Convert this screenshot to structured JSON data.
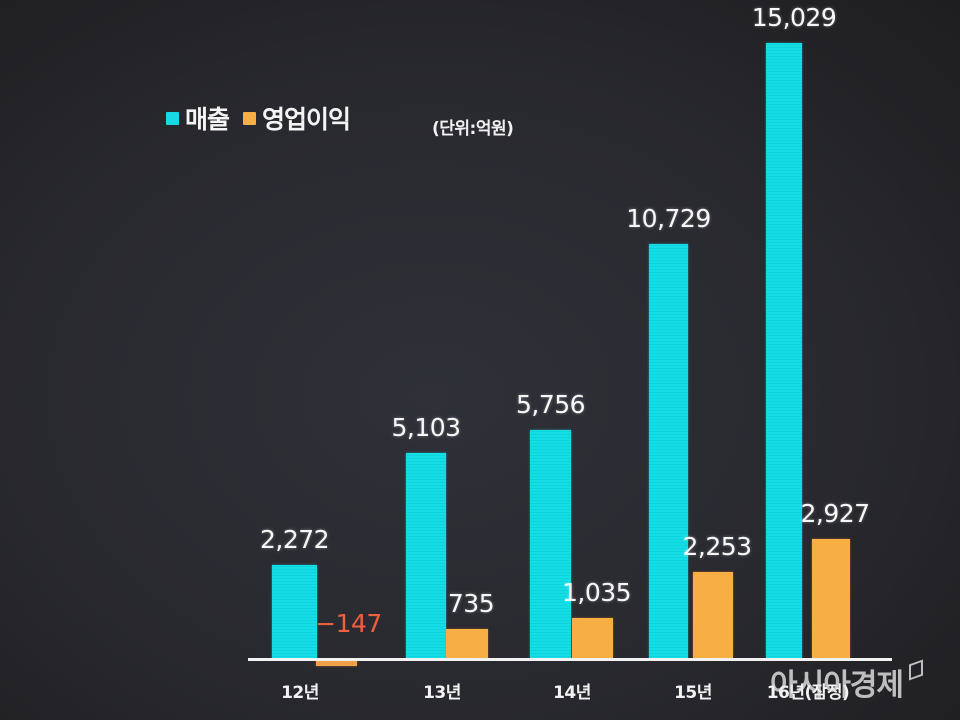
{
  "chart_data": {
    "type": "bar",
    "title": "",
    "unit_note": "(단위:억원)",
    "xlabel": "",
    "ylabel": "",
    "categories": [
      "12년",
      "13년",
      "14년",
      "15년",
      "16년(잠정)"
    ],
    "series": [
      {
        "name": "매출",
        "color": "#14dde6",
        "values": [
          2272,
          5103,
          5756,
          10729,
          15029
        ],
        "labels": [
          "2,272",
          "5,103",
          "5,756",
          "10,729",
          "15,029"
        ]
      },
      {
        "name": "영업이익",
        "color": "#f6ae45",
        "values": [
          -147,
          735,
          1035,
          2253,
          2927
        ],
        "labels": [
          "-147",
          "735",
          "1,035",
          "2,253",
          "2,927"
        ]
      }
    ],
    "negative_label_color": "#f0603a",
    "grid": false,
    "legend_position": "top-left",
    "ylim": [
      -147,
      15029
    ]
  },
  "legend": {
    "sales_label": "매출",
    "profit_label": "영업이익",
    "unit": "(단위:억원)"
  },
  "watermark": "아시아경제"
}
